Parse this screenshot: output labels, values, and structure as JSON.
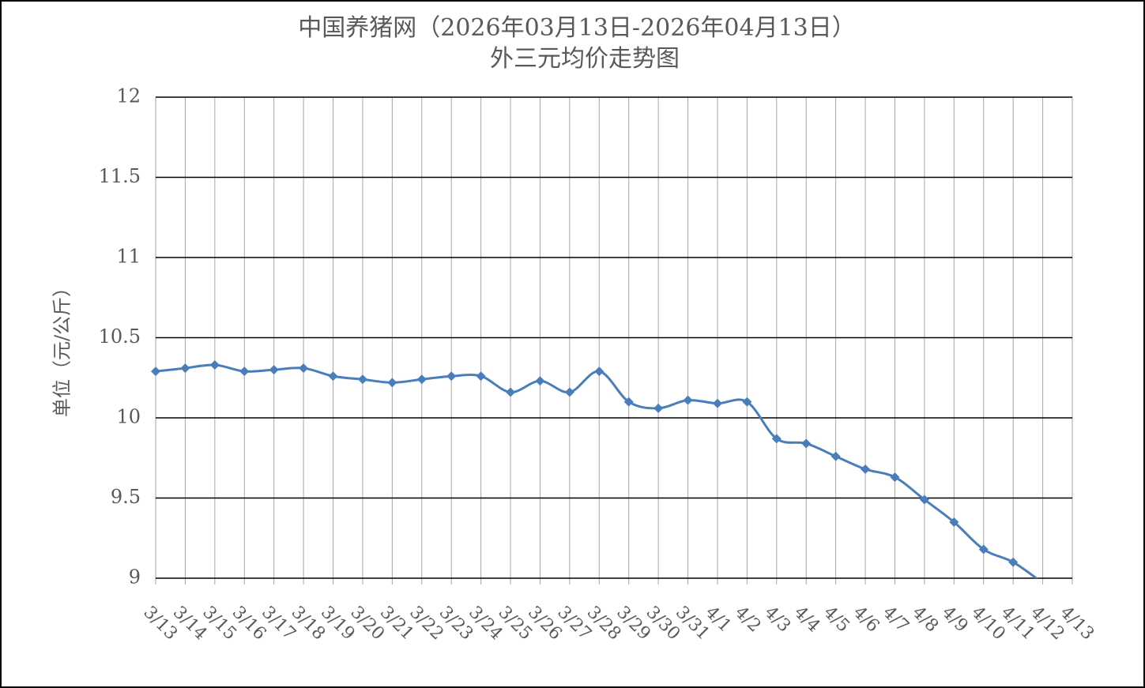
{
  "chart_data": {
    "type": "line",
    "title": "中国养猪网（2026年03月13日-2026年04月13日）",
    "subtitle": "外三元均价走势图",
    "y_label": "单位（元/公斤）",
    "categories": [
      "3/13",
      "3/14",
      "3/15",
      "3/16",
      "3/17",
      "3/18",
      "3/19",
      "3/20",
      "3/21",
      "3/22",
      "3/23",
      "3/24",
      "3/25",
      "3/26",
      "3/27",
      "3/28",
      "3/29",
      "3/30",
      "3/31",
      "4/1",
      "4/2",
      "4/3",
      "4/4",
      "4/5",
      "4/6",
      "4/7",
      "4/8",
      "4/9",
      "4/10",
      "4/11",
      "4/12",
      "4/13"
    ],
    "series": [
      {
        "name": "外三元",
        "color": "#4a7ebb",
        "values": [
          10.29,
          10.31,
          10.33,
          10.29,
          10.3,
          10.31,
          10.26,
          10.24,
          10.22,
          10.24,
          10.26,
          10.26,
          10.16,
          10.23,
          10.16,
          10.29,
          10.1,
          10.06,
          10.11,
          10.09,
          10.1,
          9.87,
          9.84,
          9.76,
          9.68,
          9.63,
          9.49,
          9.35,
          9.18,
          9.1,
          8.97,
          null
        ]
      }
    ],
    "ylim": [
      9,
      12
    ],
    "yticks": [
      9,
      9.5,
      10,
      10.5,
      11,
      11.5,
      12
    ],
    "grid": true
  }
}
